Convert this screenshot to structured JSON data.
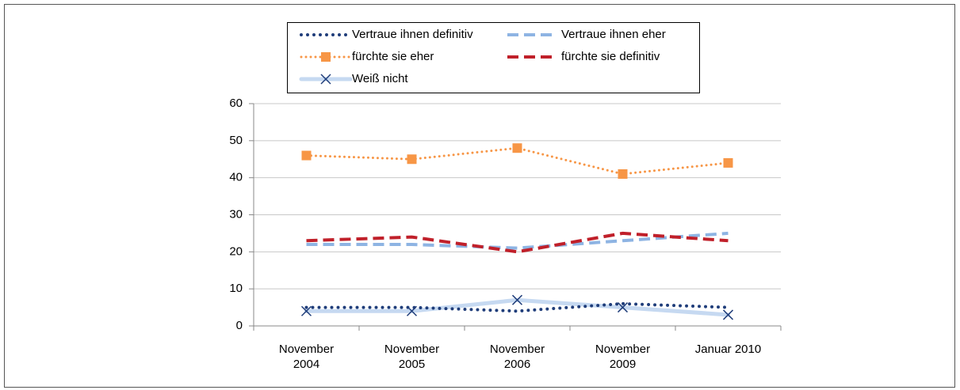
{
  "chart_data": {
    "type": "line",
    "categories": [
      "November 2004",
      "November 2005",
      "November 2006",
      "November 2009",
      "Januar 2010"
    ],
    "series": [
      {
        "name": "Vertraue ihnen definitiv",
        "color": "#1f3d7a",
        "style": "dotted",
        "marker": null,
        "values": [
          5,
          5,
          4,
          6,
          5
        ]
      },
      {
        "name": "Vertraue ihnen eher",
        "color": "#8eb4e3",
        "style": "dashed",
        "marker": null,
        "values": [
          22,
          22,
          21,
          23,
          25
        ]
      },
      {
        "name": "fürchte sie eher",
        "color": "#f79646",
        "style": "dotted",
        "marker": "square",
        "values": [
          46,
          45,
          48,
          41,
          44
        ]
      },
      {
        "name": "fürchte sie definitiv",
        "color": "#c0202a",
        "style": "dashed",
        "marker": null,
        "values": [
          23,
          24,
          20,
          25,
          23
        ]
      },
      {
        "name": "Weiß nicht",
        "color": "#c6d9f1",
        "style": "solid",
        "marker": "x",
        "marker_color": "#1f3d7a",
        "values": [
          4,
          4,
          7,
          5,
          3
        ]
      }
    ],
    "ylim": [
      0,
      60
    ],
    "yticks": [
      0,
      10,
      20,
      30,
      40,
      50,
      60
    ],
    "grid": true,
    "legend": "top"
  }
}
